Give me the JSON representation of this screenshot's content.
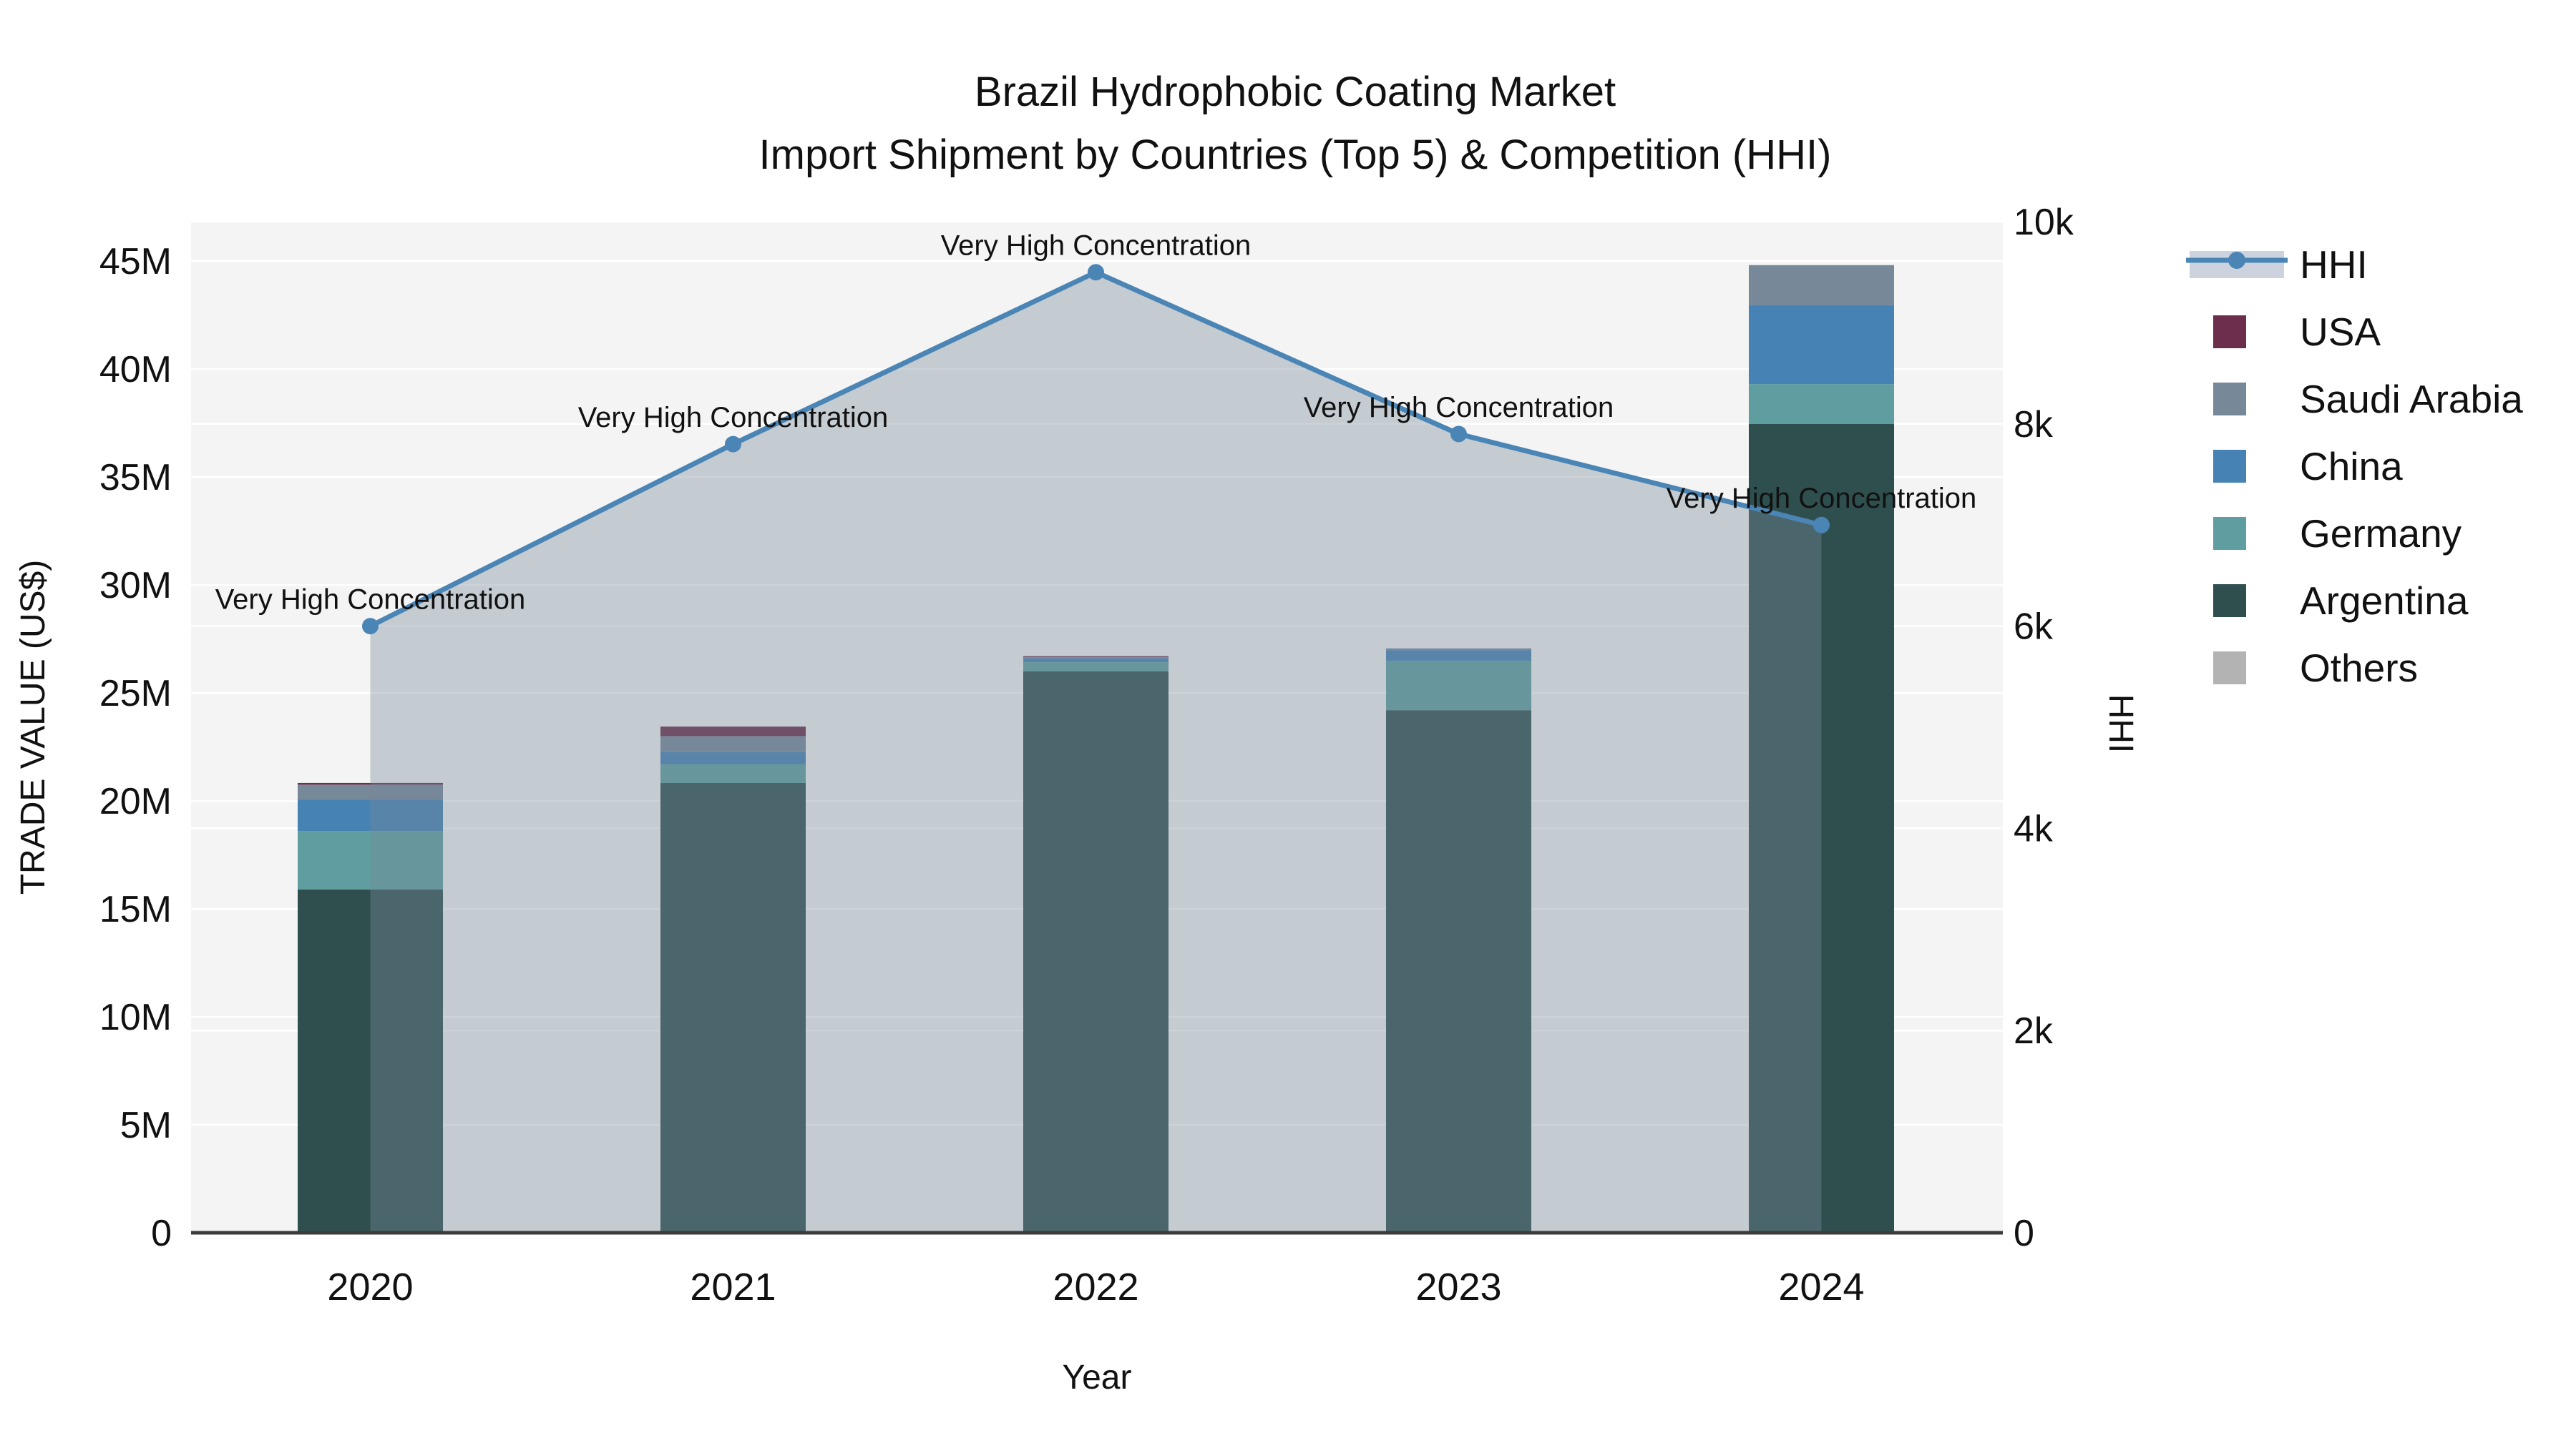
{
  "title": {
    "line1": "Brazil Hydrophobic Coating Market",
    "line2": "Import Shipment by Countries (Top 5) & Competition (HHI)"
  },
  "axis_titles": {
    "left": "TRADE VALUE (US$)",
    "bottom": "Year",
    "right": "HHI"
  },
  "legend": {
    "items": [
      {
        "label": "HHI",
        "type": "line-area"
      },
      {
        "label": "USA",
        "type": "swatch"
      },
      {
        "label": "Saudi Arabia",
        "type": "swatch"
      },
      {
        "label": "China",
        "type": "swatch"
      },
      {
        "label": "Germany",
        "type": "swatch"
      },
      {
        "label": "Argentina",
        "type": "swatch"
      },
      {
        "label": "Others",
        "type": "swatch"
      }
    ]
  },
  "colors": {
    "USA": "#6d2d4c",
    "Saudi Arabia": "#778899",
    "China": "#4682b4",
    "Germany": "#5f9ea0",
    "Argentina": "#2f4f4f",
    "Others": "#b3b3b3",
    "hhi_line": "#4a85b5",
    "hhi_area_fill": "rgba(119,136,153,0.38)",
    "plot_bg": "#f4f4f4",
    "grid": "#ffffff",
    "axis_line": "#3b3b3b",
    "text": "#111111"
  },
  "chart_data": {
    "type": "bar+line",
    "categories": [
      "2020",
      "2021",
      "2022",
      "2023",
      "2024"
    ],
    "bar_value_unit": "million US$ (left axis)",
    "stack_order_bottom_to_top": [
      "Argentina",
      "Germany",
      "China",
      "Saudi Arabia",
      "USA",
      "Others"
    ],
    "series": [
      {
        "name": "USA",
        "values": [
          0.08,
          0.44,
          0.05,
          0.0,
          0.0
        ]
      },
      {
        "name": "Saudi Arabia",
        "values": [
          0.7,
          0.74,
          0.04,
          0.08,
          1.85
        ]
      },
      {
        "name": "China",
        "values": [
          1.45,
          0.57,
          0.19,
          0.5,
          3.66
        ]
      },
      {
        "name": "Germany",
        "values": [
          2.7,
          0.86,
          0.42,
          2.28,
          1.85
        ]
      },
      {
        "name": "Argentina",
        "values": [
          15.9,
          20.83,
          26.0,
          24.2,
          37.45
        ]
      },
      {
        "name": "Others",
        "values": [
          0,
          0,
          0,
          0,
          0
        ]
      }
    ],
    "bar_totals_m": [
      20.83,
      23.44,
      26.7,
      27.06,
      44.81
    ],
    "hhi": {
      "name": "HHI",
      "values": [
        6000,
        7800,
        9500,
        7900,
        7000
      ],
      "annotation": "Very High Concentration",
      "axis": "right"
    },
    "left_axis": {
      "label": "TRADE VALUE (US$)",
      "ticks": [
        "0",
        "5M",
        "10M",
        "15M",
        "20M",
        "25M",
        "30M",
        "35M",
        "40M",
        "45M"
      ],
      "tick_values_m": [
        0,
        5,
        10,
        15,
        20,
        25,
        30,
        35,
        40,
        45
      ]
    },
    "right_axis": {
      "label": "HHI",
      "ticks": [
        "0",
        "2k",
        "4k",
        "6k",
        "8k",
        "10k"
      ],
      "tick_values": [
        0,
        2000,
        4000,
        6000,
        8000,
        10000
      ],
      "range": [
        0,
        10000
      ]
    },
    "x_axis": {
      "label": "Year"
    },
    "legend_position": "right",
    "grid": true
  }
}
